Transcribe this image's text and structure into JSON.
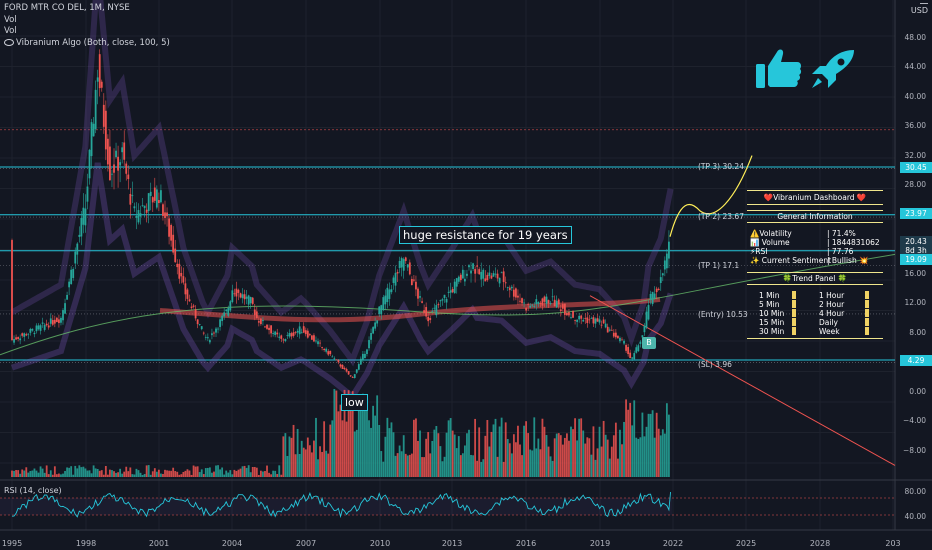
{
  "legend": {
    "symbol_line": "FORD MTR CO DEL, 1M, NYSE",
    "vol1": "Vol",
    "vol2": "Vol",
    "algo": "Vibranium Algo (Both, close, 100, 5)"
  },
  "currency": "USD",
  "price_axis": [
    "48.00",
    "44.00",
    "40.00",
    "36.00",
    "32.00",
    "28.00",
    "24.00",
    "20.00",
    "16.00",
    "12.00",
    "8.00",
    "4.00",
    "0.00",
    "−4.00",
    "−8.00"
  ],
  "price_boxes": [
    {
      "label": "30.45",
      "color": "#26c6da"
    },
    {
      "label": "23.97",
      "color": "#26c6da"
    },
    {
      "label": "20.43",
      "color": "#1e3a4a"
    },
    {
      "label": "8d 3h",
      "color": "#1e3a4a"
    },
    {
      "label": "19.09",
      "color": "#26c6da"
    },
    {
      "label": "4.29",
      "color": "#26c6da"
    }
  ],
  "rsi_axis": [
    "80.00",
    "40.00"
  ],
  "rsi_label": "RSI (14, close)",
  "x_axis": [
    "1995",
    "1998",
    "2001",
    "2004",
    "2007",
    "2010",
    "2013",
    "2016",
    "2019",
    "2022",
    "2025",
    "2028",
    "203"
  ],
  "levels": {
    "tp3": "(TP 3) 30.24",
    "tp2": "(TP 2) 23.67",
    "tp1": "(TP 1) 17.1",
    "entry": "(Entry) 10.53",
    "sl": "(SL) 3.96"
  },
  "callouts": {
    "resistance": "huge resistance for 19 years",
    "low": "low",
    "buy": "B"
  },
  "dashboard": {
    "title": "❤️Vibranium Dashboard ❤️",
    "general": "General Information",
    "rows": [
      {
        "label": "⚠️Volatility",
        "value": "| 71.4%"
      },
      {
        "label": "📊 Volume",
        "value": "| 1844831062"
      },
      {
        "label": "⚡RSI",
        "value": "| 77.76"
      },
      {
        "label": "✨ Current Sentiment",
        "value": "| Bullish 💥"
      }
    ],
    "trend_panel": "🍀Trend Panel 🍀",
    "timeframes_left": [
      "1 Min",
      "5 Min",
      "10 Min",
      "15 Min",
      "30 Min"
    ],
    "timeframes_right": [
      "1 Hour",
      "2 Hour",
      "4 Hour",
      "Daily",
      "Week"
    ]
  },
  "emojis": {
    "thumbs": "thumbs-up-icon",
    "rocket": "rocket-icon"
  },
  "colors": {
    "accent": "#26c6da",
    "up": "#26a69a",
    "down": "#ef5350",
    "tp_curve": "#ffee58"
  }
}
